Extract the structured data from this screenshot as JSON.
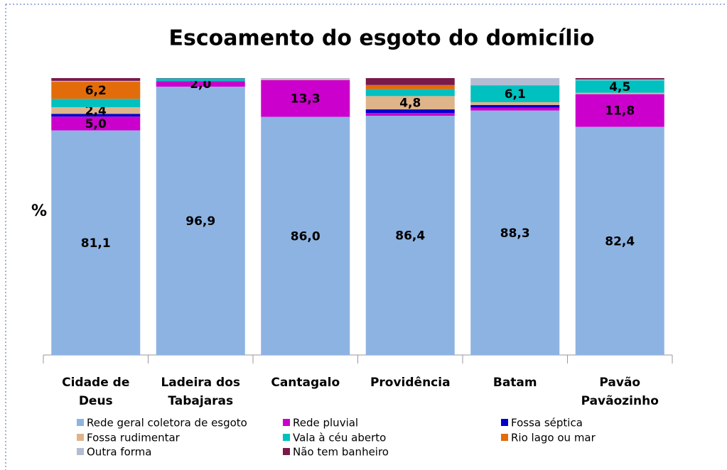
{
  "chart_data": {
    "type": "stacked_bar",
    "title": "Escoamento do esgoto do domicílio",
    "y_label": "%",
    "categories": [
      "Cidade de Deus",
      "Ladeira dos Tabajaras",
      "Cantagalo",
      "Providência",
      "Batam",
      "Pavão Pavãozinho"
    ],
    "ylim": [
      0,
      100
    ],
    "series": [
      {
        "name": "Rede geral coletora de esgoto",
        "color": "#8db3e2",
        "values": [
          81.1,
          96.9,
          86.0,
          86.4,
          88.3,
          82.4
        ],
        "value_labels": [
          "81,1",
          "96,9",
          "86,0",
          "86,4",
          "88,3",
          "82,4"
        ]
      },
      {
        "name": "Rede pluvial",
        "color": "#cc00cc",
        "values": [
          5.0,
          2.0,
          13.3,
          1.0,
          1.0,
          11.8
        ],
        "value_labels": [
          "5,0",
          "2,0",
          "13,3",
          null,
          null,
          "11,8"
        ]
      },
      {
        "name": "Fossa séptica",
        "color": "#0000cc",
        "values": [
          1.0,
          0,
          0,
          1.3,
          1.0,
          0
        ]
      },
      {
        "name": "Fossa rudimentar",
        "color": "#dfb48a",
        "values": [
          2.4,
          0,
          0.4,
          4.8,
          1.0,
          0.5
        ],
        "value_labels": [
          "2,4",
          null,
          null,
          "4,8",
          null,
          null
        ]
      },
      {
        "name": "Vala à céu aberto",
        "color": "#00c0c0",
        "values": [
          3.0,
          1.0,
          0,
          2.5,
          6.1,
          4.5
        ],
        "value_labels": [
          null,
          null,
          null,
          null,
          "6,1",
          "4,5"
        ]
      },
      {
        "name": "Rio lago ou mar",
        "color": "#e36c0a",
        "values": [
          6.2,
          0,
          0,
          1.5,
          0,
          0
        ],
        "value_labels": [
          "6,2",
          null,
          null,
          null,
          null,
          null
        ]
      },
      {
        "name": "Outra forma",
        "color": "#b4bcd4",
        "values": [
          0.3,
          0,
          0.3,
          0,
          2.6,
          0.3
        ]
      },
      {
        "name": "Não tem banheiro",
        "color": "#7a1a4a",
        "values": [
          1.0,
          0.1,
          0,
          2.5,
          0,
          0.5
        ]
      }
    ]
  }
}
